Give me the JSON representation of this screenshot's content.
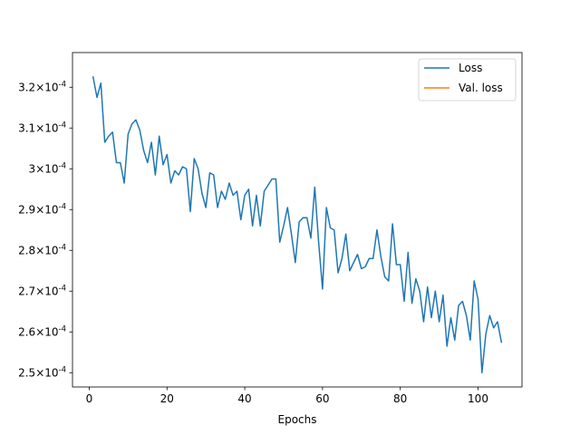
{
  "chart_data": {
    "type": "line",
    "title": "",
    "xlabel": "Epochs",
    "ylabel": "",
    "xlim": [
      -4.3,
      111.3
    ],
    "ylim": [
      0.0002465,
      0.0003285
    ],
    "xticks": [
      0,
      20,
      40,
      60,
      80,
      100
    ],
    "yticks": [
      {
        "value": 0.00025,
        "mantissa": "2.5",
        "exp": "-4"
      },
      {
        "value": 0.00026,
        "mantissa": "2.6",
        "exp": "-4"
      },
      {
        "value": 0.00027,
        "mantissa": "2.7",
        "exp": "-4"
      },
      {
        "value": 0.00028,
        "mantissa": "2.8",
        "exp": "-4"
      },
      {
        "value": 0.00029,
        "mantissa": "2.9",
        "exp": "-4"
      },
      {
        "value": 0.0003,
        "mantissa": "3",
        "exp": "-4"
      },
      {
        "value": 0.00031,
        "mantissa": "3.1",
        "exp": "-4"
      },
      {
        "value": 0.00032,
        "mantissa": "3.2",
        "exp": "-4"
      }
    ],
    "legend_position": "top-right",
    "grid": false,
    "series": [
      {
        "name": "Loss",
        "color": "#1f77b4",
        "x": [
          1,
          2,
          3,
          4,
          5,
          6,
          7,
          8,
          9,
          10,
          11,
          12,
          13,
          14,
          15,
          16,
          17,
          18,
          19,
          20,
          21,
          22,
          23,
          24,
          25,
          26,
          27,
          28,
          29,
          30,
          31,
          32,
          33,
          34,
          35,
          36,
          37,
          38,
          39,
          40,
          41,
          42,
          43,
          44,
          45,
          46,
          47,
          48,
          49,
          50,
          51,
          52,
          53,
          54,
          55,
          56,
          57,
          58,
          59,
          60,
          61,
          62,
          63,
          64,
          65,
          66,
          67,
          68,
          69,
          70,
          71,
          72,
          73,
          74,
          75,
          76,
          77,
          78,
          79,
          80,
          81,
          82,
          83,
          84,
          85,
          86,
          87,
          88,
          89,
          90,
          91,
          92,
          93,
          94,
          95,
          96,
          97,
          98,
          99,
          100,
          101,
          102,
          103,
          104,
          105,
          106
        ],
        "values": [
          0.0003225,
          0.0003175,
          0.000321,
          0.0003065,
          0.000308,
          0.000309,
          0.0003015,
          0.0003015,
          0.0002965,
          0.0003085,
          0.000311,
          0.000312,
          0.0003095,
          0.0003045,
          0.0003015,
          0.0003065,
          0.0002985,
          0.000308,
          0.000301,
          0.0003035,
          0.0002965,
          0.0002995,
          0.0002985,
          0.0003005,
          0.0003,
          0.0002895,
          0.0003025,
          0.0003,
          0.000294,
          0.0002905,
          0.000299,
          0.0002985,
          0.0002905,
          0.0002945,
          0.0002925,
          0.0002965,
          0.0002935,
          0.0002945,
          0.0002875,
          0.0002935,
          0.000295,
          0.000286,
          0.0002935,
          0.000286,
          0.0002945,
          0.000296,
          0.0002975,
          0.0002975,
          0.000282,
          0.000286,
          0.0002905,
          0.000284,
          0.000277,
          0.000287,
          0.000288,
          0.000288,
          0.000283,
          0.0002955,
          0.000282,
          0.0002705,
          0.0002905,
          0.0002855,
          0.000285,
          0.0002745,
          0.000278,
          0.000284,
          0.000275,
          0.000277,
          0.000279,
          0.0002755,
          0.000276,
          0.000278,
          0.000278,
          0.000285,
          0.0002785,
          0.0002735,
          0.0002725,
          0.0002865,
          0.0002765,
          0.0002765,
          0.0002675,
          0.0002795,
          0.000267,
          0.000273,
          0.00027,
          0.0002625,
          0.000271,
          0.0002635,
          0.00027,
          0.0002625,
          0.000269,
          0.0002565,
          0.0002635,
          0.000258,
          0.0002665,
          0.0002675,
          0.000264,
          0.000258,
          0.0002725,
          0.000268,
          0.00025,
          0.0002595,
          0.000264,
          0.000261,
          0.0002625,
          0.0002575
        ]
      },
      {
        "name": "Val. loss",
        "color": "#ff7f0e",
        "x": [],
        "values": []
      }
    ]
  }
}
